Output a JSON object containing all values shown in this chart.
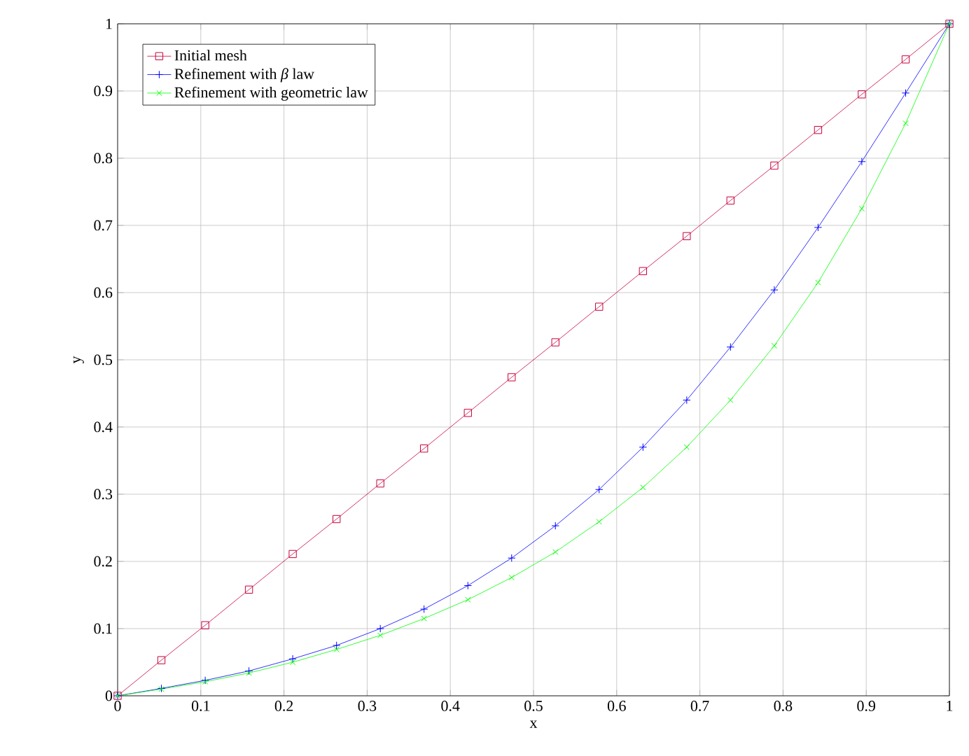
{
  "chart_data": {
    "type": "line",
    "xlabel": "x",
    "ylabel": "y",
    "x": [
      0,
      0.0526,
      0.1053,
      0.1579,
      0.2105,
      0.2632,
      0.3158,
      0.3684,
      0.4211,
      0.4737,
      0.5263,
      0.5789,
      0.6316,
      0.6842,
      0.7368,
      0.7895,
      0.8421,
      0.8947,
      0.9474,
      1
    ],
    "series": [
      {
        "name": "Initial mesh",
        "color": "#c8003c",
        "marker": "square",
        "values": [
          0,
          0.053,
          0.105,
          0.158,
          0.211,
          0.263,
          0.316,
          0.368,
          0.421,
          0.474,
          0.526,
          0.579,
          0.632,
          0.684,
          0.737,
          0.789,
          0.842,
          0.895,
          0.947,
          1
        ]
      },
      {
        "name": "Refinement with *β* law",
        "color": "#0000ff",
        "marker": "plus",
        "values": [
          0,
          0.011,
          0.023,
          0.037,
          0.055,
          0.075,
          0.1,
          0.129,
          0.164,
          0.205,
          0.253,
          0.307,
          0.37,
          0.44,
          0.519,
          0.604,
          0.697,
          0.795,
          0.897,
          1
        ]
      },
      {
        "name": "Refinement with geometric law",
        "color": "#00ff00",
        "marker": "cross",
        "values": [
          0,
          0.01,
          0.021,
          0.034,
          0.05,
          0.069,
          0.09,
          0.115,
          0.143,
          0.176,
          0.214,
          0.259,
          0.31,
          0.37,
          0.44,
          0.521,
          0.615,
          0.725,
          0.852,
          1
        ]
      }
    ],
    "xlim": [
      0,
      1
    ],
    "ylim": [
      0,
      1
    ],
    "xticks": [
      0,
      0.1,
      0.2,
      0.3,
      0.4,
      0.5,
      0.6,
      0.7,
      0.8,
      0.9,
      1
    ],
    "yticks": [
      0,
      0.1,
      0.2,
      0.3,
      0.4,
      0.5,
      0.6,
      0.7,
      0.8,
      0.9,
      1
    ],
    "grid": true,
    "legend": "top left",
    "line_style": "solid"
  }
}
